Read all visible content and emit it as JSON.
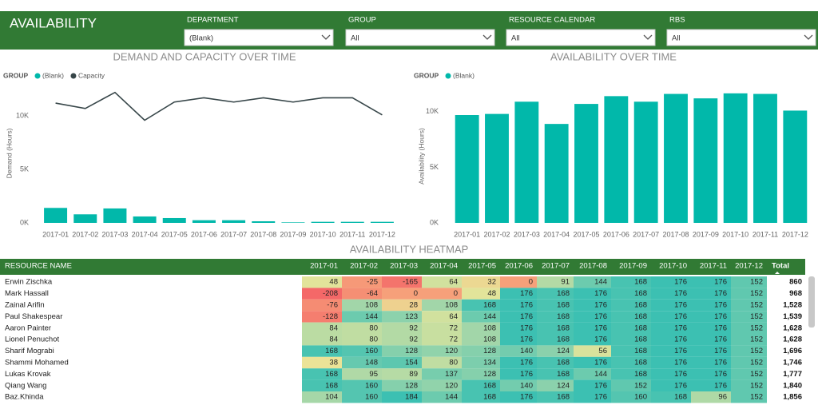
{
  "header": {
    "title": "AVAILABILITY"
  },
  "filters": [
    {
      "label": "DEPARTMENT",
      "value": "(Blank)"
    },
    {
      "label": "GROUP",
      "value": "All"
    },
    {
      "label": "RESOURCE CALENDAR",
      "value": "All"
    },
    {
      "label": "RBS",
      "value": "All"
    }
  ],
  "chart_data": [
    {
      "type": "combo",
      "title": "DEMAND AND CAPACITY OVER TIME",
      "legend_title": "GROUP",
      "y_label": "Demand (Hours)",
      "categories": [
        "2017-01",
        "2017-02",
        "2017-03",
        "2017-04",
        "2017-05",
        "2017-06",
        "2017-07",
        "2017-08",
        "2017-09",
        "2017-10",
        "2017-11",
        "2017-12"
      ],
      "series": [
        {
          "name": "(Blank)",
          "type": "bar",
          "color": "#01b8aa",
          "values": [
            1400,
            800,
            1350,
            600,
            450,
            250,
            250,
            150,
            50,
            100,
            100,
            100
          ]
        },
        {
          "name": "Capacity",
          "type": "line",
          "color": "#374649",
          "values": [
            11200,
            10700,
            12200,
            9600,
            11300,
            11700,
            11300,
            11700,
            11300,
            11700,
            11700,
            10100
          ]
        }
      ],
      "ylim": [
        0,
        13000
      ],
      "yticks": [
        {
          "value": 0,
          "label": "0K"
        },
        {
          "value": 5000,
          "label": "5K"
        },
        {
          "value": 10000,
          "label": "10K"
        }
      ],
      "grid": false
    },
    {
      "type": "bar",
      "title": "AVAILABILITY OVER TIME",
      "legend_title": "GROUP",
      "y_label": "Availability (Hours)",
      "categories": [
        "2017-01",
        "2017-02",
        "2017-03",
        "2017-04",
        "2017-05",
        "2017-06",
        "2017-07",
        "2017-08",
        "2017-09",
        "2017-10",
        "2017-11",
        "2017-12"
      ],
      "series": [
        {
          "name": "(Blank)",
          "type": "bar",
          "color": "#01b8aa",
          "values": [
            9700,
            9800,
            10900,
            8900,
            10700,
            11400,
            10900,
            11600,
            11200,
            11650,
            11600,
            10100
          ]
        }
      ],
      "ylim": [
        0,
        12000
      ],
      "yticks": [
        {
          "value": 0,
          "label": "0K"
        },
        {
          "value": 5000,
          "label": "5K"
        },
        {
          "value": 10000,
          "label": "10K"
        }
      ],
      "grid": false
    }
  ],
  "heatmap": {
    "title": "AVAILABILITY HEATMAP",
    "columns": [
      "RESOURCE NAME",
      "2017-01",
      "2017-02",
      "2017-03",
      "2017-04",
      "2017-05",
      "2017-06",
      "2017-07",
      "2017-08",
      "2017-09",
      "2017-10",
      "2017-11",
      "2017-12",
      "Total"
    ],
    "rows": [
      {
        "name": "Erwin Zischka",
        "values": [
          48,
          -25,
          -165,
          64,
          32,
          0,
          91,
          144,
          168,
          176,
          176,
          152
        ],
        "total": 860
      },
      {
        "name": "Mark Hassall",
        "values": [
          -208,
          -64,
          0,
          0,
          48,
          176,
          168,
          176,
          168,
          176,
          176,
          152
        ],
        "total": 968
      },
      {
        "name": "Zainal Arifin",
        "values": [
          -76,
          108,
          28,
          108,
          168,
          176,
          168,
          176,
          168,
          176,
          176,
          152
        ],
        "total": "1,528"
      },
      {
        "name": "Paul Shakespear",
        "values": [
          -128,
          144,
          123,
          64,
          144,
          176,
          168,
          176,
          168,
          176,
          176,
          152
        ],
        "total": "1,539"
      },
      {
        "name": "Aaron Painter",
        "values": [
          84,
          80,
          92,
          72,
          108,
          176,
          168,
          176,
          168,
          176,
          176,
          152
        ],
        "total": "1,628"
      },
      {
        "name": "Lionel Penuchot",
        "values": [
          84,
          80,
          92,
          72,
          108,
          176,
          168,
          176,
          168,
          176,
          176,
          152
        ],
        "total": "1,628"
      },
      {
        "name": "Sharif Mograbi",
        "values": [
          168,
          160,
          128,
          120,
          128,
          140,
          124,
          56,
          168,
          176,
          176,
          152
        ],
        "total": "1,696"
      },
      {
        "name": "Shammi Mohamed",
        "values": [
          38,
          148,
          154,
          80,
          134,
          176,
          168,
          176,
          168,
          176,
          176,
          152
        ],
        "total": "1,746"
      },
      {
        "name": "Lukas Krovak",
        "values": [
          168,
          95,
          89,
          137,
          128,
          176,
          168,
          144,
          168,
          176,
          176,
          152
        ],
        "total": "1,777"
      },
      {
        "name": "Qiang Wang",
        "values": [
          168,
          160,
          128,
          120,
          168,
          140,
          124,
          176,
          152,
          176,
          176,
          152
        ],
        "total": "1,840"
      },
      {
        "name": "Baz.Khinda",
        "values": [
          104,
          160,
          184,
          144,
          168,
          176,
          168,
          176,
          160,
          168,
          96,
          152
        ],
        "total": "1,856"
      }
    ]
  }
}
